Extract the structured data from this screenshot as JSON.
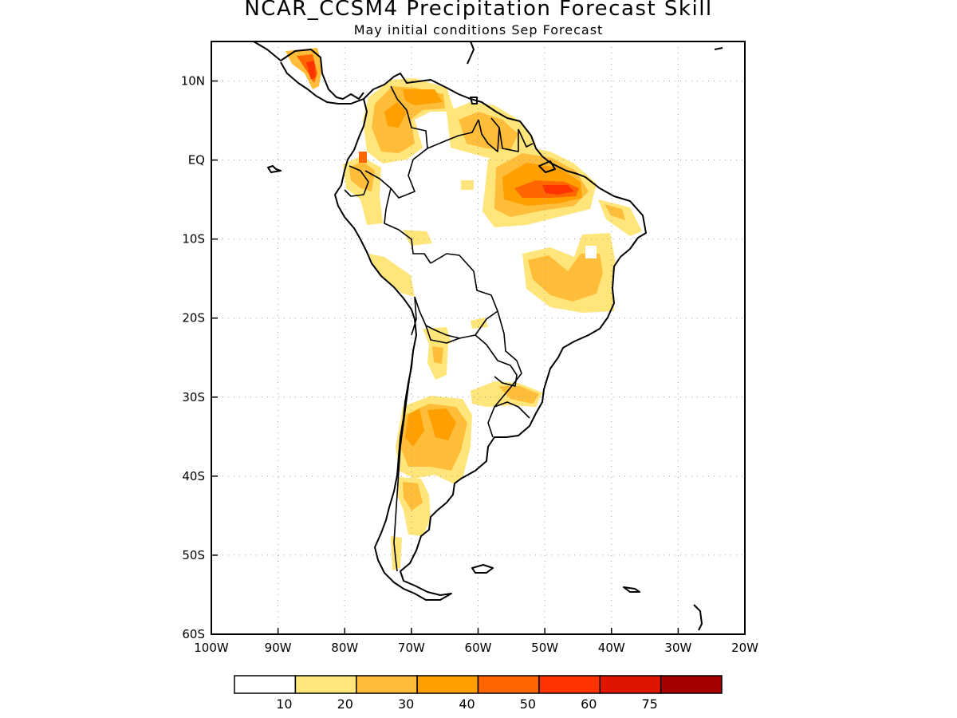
{
  "title": "NCAR_CCSM4 Precipitation Forecast Skill",
  "subtitle": "May initial conditions  Sep Forecast",
  "map": {
    "region": "South America",
    "lon_range": [
      -100,
      -20
    ],
    "lat_range": [
      -60,
      15
    ],
    "grid": "dotted",
    "lat_ticks": [
      {
        "value": 10,
        "label": "10N"
      },
      {
        "value": 0,
        "label": "EQ"
      },
      {
        "value": -10,
        "label": "10S"
      },
      {
        "value": -20,
        "label": "20S"
      },
      {
        "value": -30,
        "label": "30S"
      },
      {
        "value": -40,
        "label": "40S"
      },
      {
        "value": -50,
        "label": "50S"
      },
      {
        "value": -60,
        "label": "60S"
      }
    ],
    "lon_ticks": [
      {
        "value": -100,
        "label": "100W"
      },
      {
        "value": -90,
        "label": "90W"
      },
      {
        "value": -80,
        "label": "80W"
      },
      {
        "value": -70,
        "label": "70W"
      },
      {
        "value": -60,
        "label": "60W"
      },
      {
        "value": -50,
        "label": "50W"
      },
      {
        "value": -40,
        "label": "40W"
      },
      {
        "value": -30,
        "label": "30W"
      },
      {
        "value": -20,
        "label": "20W"
      }
    ]
  },
  "colorbar": {
    "bins": [
      {
        "color": "#ffffff"
      },
      {
        "color": "#ffe57a"
      },
      {
        "color": "#ffbd3a"
      },
      {
        "color": "#ff9f00"
      },
      {
        "color": "#ff6600"
      },
      {
        "color": "#ff3300"
      },
      {
        "color": "#e01500"
      },
      {
        "color": "#a50000"
      }
    ],
    "labels": [
      "10",
      "20",
      "30",
      "40",
      "50",
      "60",
      "75"
    ]
  },
  "skill_regions": [
    {
      "region": "Central America",
      "lon": -85,
      "lat": 11,
      "level": 3
    },
    {
      "region": "Colombia / Venezuela",
      "lon": -70,
      "lat": 8,
      "level": 2
    },
    {
      "region": "Guianas",
      "lon": -57,
      "lat": 4,
      "level": 2
    },
    {
      "region": "Eastern Amazon",
      "lon": -48,
      "lat": -2,
      "level": 4
    },
    {
      "region": "Northeast Brazil",
      "lon": -45,
      "lat": -13,
      "level": 2
    },
    {
      "region": "Ecuador / Peru",
      "lon": -75,
      "lat": -3,
      "level": 2
    },
    {
      "region": "Central Argentina / Chile",
      "lon": -68,
      "lat": -35,
      "level": 2
    },
    {
      "region": "Southern Brazil",
      "lon": -55,
      "lat": -29,
      "level": 2
    },
    {
      "region": "Patagonia",
      "lon": -70,
      "lat": -44,
      "level": 1
    }
  ]
}
